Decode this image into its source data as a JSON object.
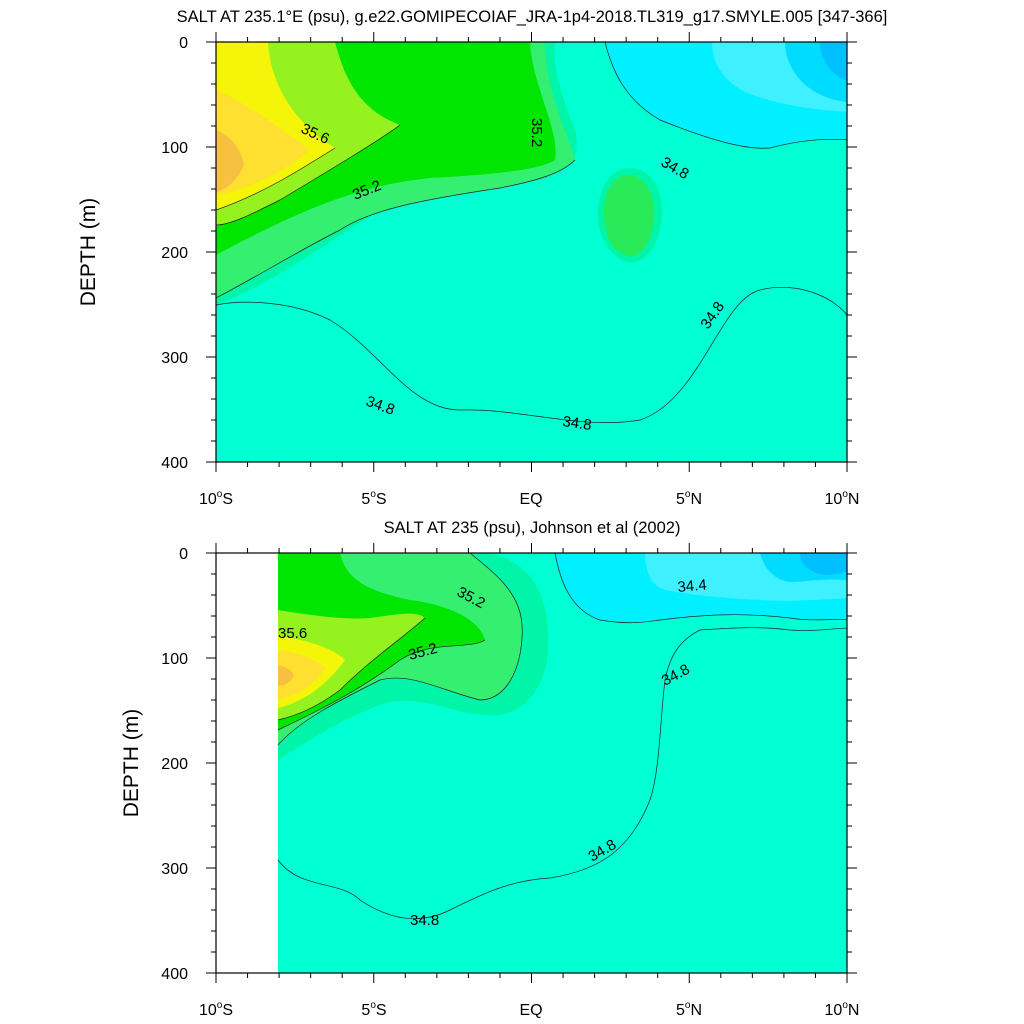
{
  "figure": {
    "top": {
      "title": "SALT AT 235.1°E (psu), g.e22.GOMIPECOIAF_JRA-1p4-2018.TL319_g17.SMYLE.005 [347-366]",
      "ylabel": "DEPTH (m)"
    },
    "bottom": {
      "title": "SALT AT 235 (psu), Johnson et al (2002)",
      "ylabel": "DEPTH (m)"
    },
    "yticks": [
      "0",
      "100",
      "200",
      "300",
      "400"
    ],
    "xticks": [
      {
        "base": "10",
        "sup": "o",
        "hemi": "S"
      },
      {
        "base": "5",
        "sup": "o",
        "hemi": "S"
      },
      {
        "base": "EQ",
        "sup": "",
        "hemi": ""
      },
      {
        "base": "5",
        "sup": "o",
        "hemi": "N"
      },
      {
        "base": "10",
        "sup": "o",
        "hemi": "N"
      }
    ]
  },
  "colors": {
    "lt344": "#00bfff",
    "c344": "#00e5ff",
    "c346": "#3fe8ff",
    "c348": "#00ffd2",
    "c350": "#00f5a8",
    "c352": "#35ef70",
    "c354": "#00e600",
    "c356": "#96f21e",
    "c358": "#f5f50a",
    "c360": "#ffe030",
    "c362": "#f8c040"
  },
  "chart_data": [
    {
      "type": "contour",
      "variable": "salinity",
      "units": "psu",
      "title": "SALT AT 235.1°E (psu), g.e22.GOMIPECOIAF_JRA-1p4-2018.TL319_g17.SMYLE.005 [347-366]",
      "ylabel": "DEPTH (m)",
      "xlim": [
        -10,
        10
      ],
      "ylim": [
        400,
        0
      ],
      "x_ticks": [
        "10°S",
        "5°S",
        "EQ",
        "5°N",
        "10°N"
      ],
      "y_ticks": [
        0,
        100,
        200,
        300,
        400
      ],
      "contour_labels": [
        {
          "text": "35.6",
          "x": -7.1,
          "y": 85
        },
        {
          "text": "35.2",
          "x": -4.9,
          "y": 140
        },
        {
          "text": "35.2",
          "x": 0.25,
          "y": 82
        },
        {
          "text": "34.8",
          "x": 4.6,
          "y": 115
        },
        {
          "text": "34.8",
          "x": 5.8,
          "y": 262
        },
        {
          "text": "34.8",
          "x": -5.2,
          "y": 340
        },
        {
          "text": "34.8",
          "x": 1.6,
          "y": 358
        }
      ]
    },
    {
      "type": "contour",
      "variable": "salinity",
      "units": "psu",
      "title": "SALT AT 235 (psu), Johnson et al (2002)",
      "ylabel": "DEPTH (m)",
      "xlim": [
        -10,
        10
      ],
      "ylim": [
        400,
        0
      ],
      "x_ticks": [
        "10°S",
        "5°S",
        "EQ",
        "5°N",
        "10°N"
      ],
      "y_ticks": [
        0,
        100,
        200,
        300,
        400
      ],
      "contour_labels": [
        {
          "text": "35.6",
          "x": -9.4,
          "y": 70
        },
        {
          "text": "35.2",
          "x": -3.2,
          "y": 85
        },
        {
          "text": "35.2",
          "x": -1.8,
          "y": 35
        },
        {
          "text": "34.4",
          "x": 5.2,
          "y": 25
        },
        {
          "text": "34.8",
          "x": 5.0,
          "y": 110
        },
        {
          "text": "34.8",
          "x": 2.2,
          "y": 280
        },
        {
          "text": "34.8",
          "x": -3.2,
          "y": 345
        }
      ]
    }
  ]
}
